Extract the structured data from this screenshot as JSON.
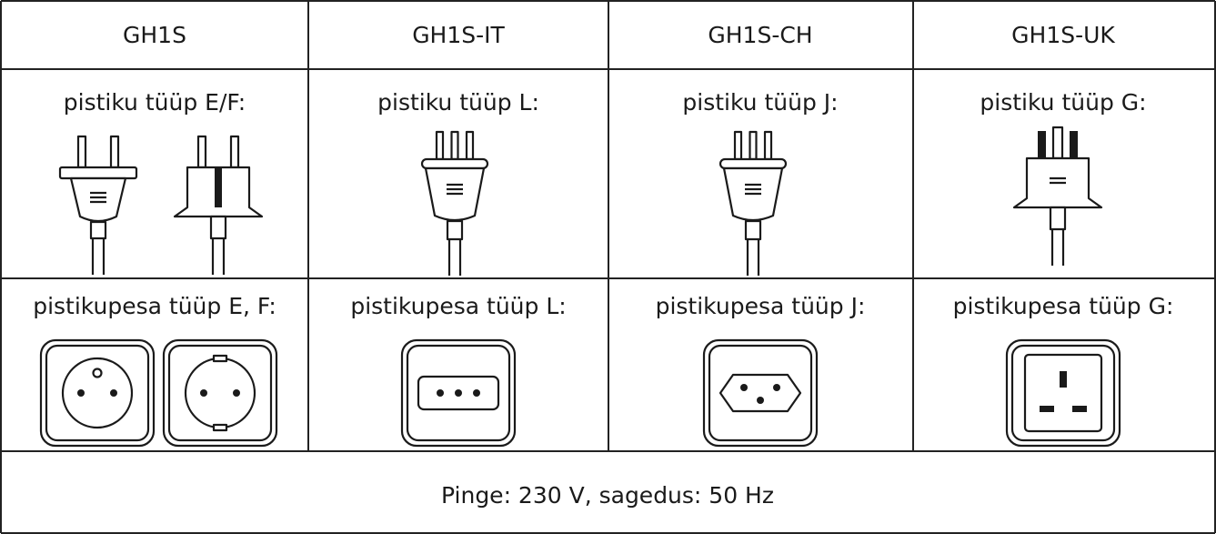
{
  "table": {
    "header": [
      "GH1S",
      "GH1S-IT",
      "GH1S-CH",
      "GH1S-UK"
    ],
    "rows": [
      [
        "pistiku tüüp E/F:",
        "pistiku tüüp L:",
        "pistiku tüüp J:",
        "pistiku tüüp G:"
      ],
      [
        "pistikupesa tüüp E, F:",
        "pistikupesa tüüp L:",
        "pistikupesa tüüp J:",
        "pistikupesa tüüp G:"
      ]
    ],
    "footer": "Pinge: 230 V, sagedus: 50 Hz"
  }
}
